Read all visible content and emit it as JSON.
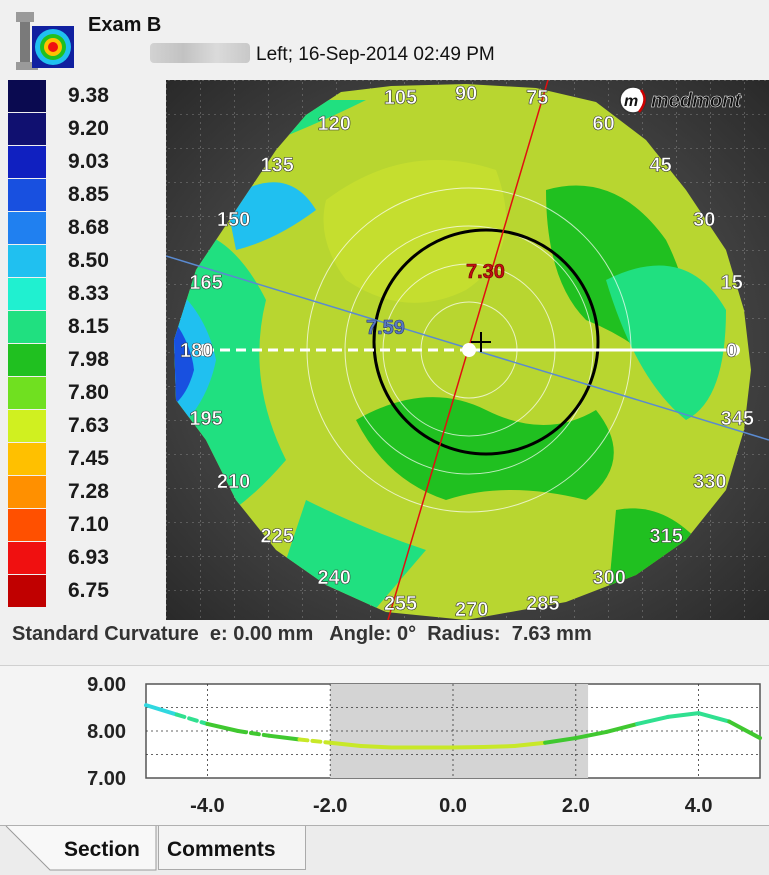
{
  "header": {
    "title": "Exam B",
    "subtitle": "Left; 16-Sep-2014 02:49 PM"
  },
  "legend": [
    {
      "value": "9.38",
      "color": "#0a0a50"
    },
    {
      "value": "9.20",
      "color": "#101070"
    },
    {
      "value": "9.03",
      "color": "#1020c0"
    },
    {
      "value": "8.85",
      "color": "#1850e0"
    },
    {
      "value": "8.68",
      "color": "#2080f0"
    },
    {
      "value": "8.50",
      "color": "#20c0f0"
    },
    {
      "value": "8.33",
      "color": "#20f0d0"
    },
    {
      "value": "8.15",
      "color": "#20e080"
    },
    {
      "value": "7.98",
      "color": "#20c020"
    },
    {
      "value": "7.80",
      "color": "#70e020"
    },
    {
      "value": "7.63",
      "color": "#d0f020"
    },
    {
      "value": "7.45",
      "color": "#ffc000"
    },
    {
      "value": "7.28",
      "color": "#ff9000"
    },
    {
      "value": "7.10",
      "color": "#ff5000"
    },
    {
      "value": "6.93",
      "color": "#f01010"
    },
    {
      "value": "6.75",
      "color": "#c00000"
    }
  ],
  "map": {
    "brand": "medmont",
    "angles": [
      "90",
      "75",
      "60",
      "45",
      "30",
      "15",
      "0",
      "345",
      "330",
      "315",
      "300",
      "285",
      "270",
      "255",
      "240",
      "225",
      "210",
      "195",
      "180",
      "165",
      "150",
      "135",
      "120",
      "105"
    ],
    "labels": {
      "red_meridian": "7.30",
      "blue_meridian": "7.59"
    }
  },
  "status": {
    "mode": "Standard Curvature",
    "e_label": "e:",
    "e_value": "0.00 mm",
    "angle_label": "Angle:",
    "angle_value": "0°",
    "radius_label": "Radius:",
    "radius_value": "7.63 mm"
  },
  "chart_data": {
    "type": "line",
    "x_ticks": [
      "-4.0",
      "-2.0",
      "0.0",
      "2.0",
      "4.0"
    ],
    "y_ticks": [
      "9.00",
      "8.00",
      "7.00"
    ],
    "ylim": [
      7.0,
      9.0
    ],
    "xlim": [
      -5.0,
      5.0
    ],
    "highlight_range": [
      -2.0,
      2.2
    ],
    "series": [
      {
        "x": [
          -5.0,
          -4.5,
          -4.0,
          -3.5,
          -3.0,
          -2.5,
          -2.0,
          -1.5,
          -1.0,
          -0.5,
          0.0,
          0.5,
          1.0,
          1.5,
          2.0,
          2.5,
          3.0,
          3.5,
          4.0,
          4.5,
          5.0
        ],
        "y": [
          8.55,
          8.35,
          8.15,
          8.0,
          7.9,
          7.82,
          7.75,
          7.68,
          7.65,
          7.65,
          7.65,
          7.66,
          7.68,
          7.75,
          7.85,
          7.98,
          8.15,
          8.3,
          8.38,
          8.2,
          7.85
        ]
      }
    ]
  },
  "tabs": {
    "section": "Section",
    "comments": "Comments"
  }
}
